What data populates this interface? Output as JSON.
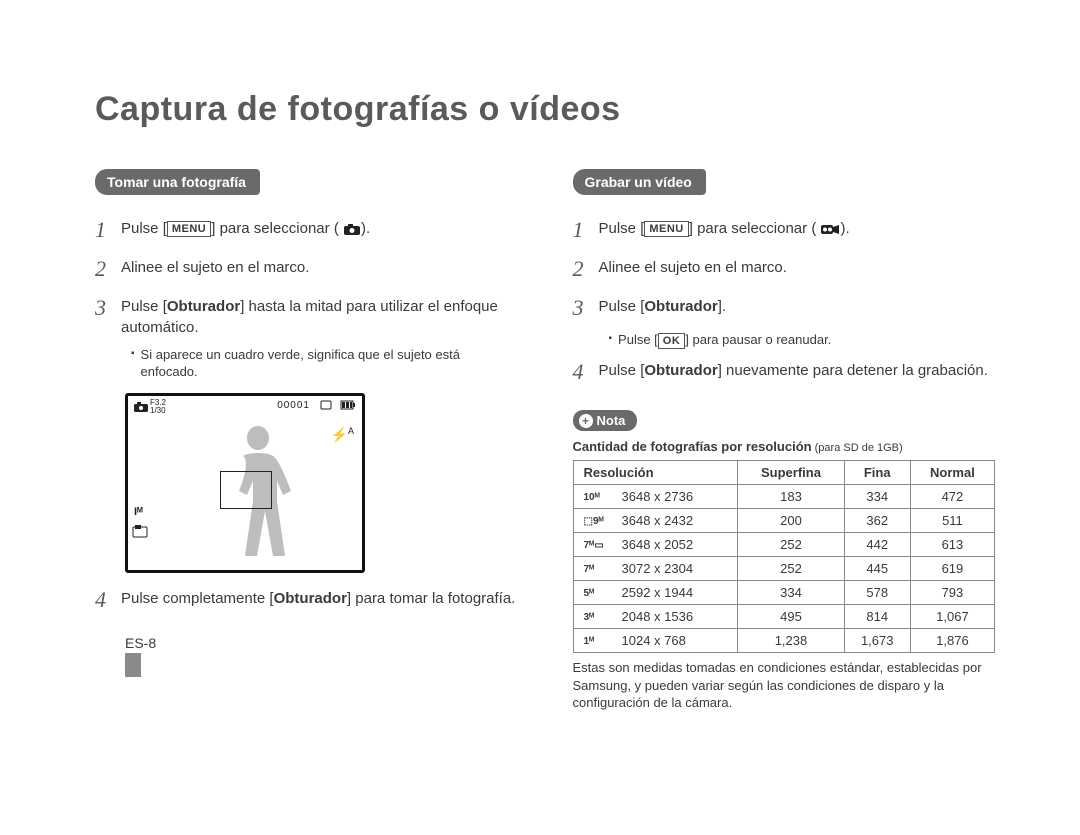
{
  "colors": {
    "text": "#3a3a3a",
    "heading": "#5a5a5a",
    "pill_bg": "#6a6a6a",
    "pill_fg": "#ffffff",
    "border": "#888888",
    "page_bar": "#8a8a8a"
  },
  "title": "Captura de fotografías o vídeos",
  "left": {
    "heading": "Tomar una fotografía",
    "steps": {
      "s1": {
        "num": "1",
        "pre": "Pulse [",
        "token": "MENU",
        "post": "] para seleccionar (",
        "icon": "camera-icon",
        "end": ")."
      },
      "s2": {
        "num": "2",
        "text": "Alinee el sujeto en el marco."
      },
      "s3": {
        "num": "3",
        "pre": "Pulse [",
        "bold": "Obturador",
        "post": "] hasta la mitad para utilizar el enfoque automático."
      },
      "s3_sub": "Si aparece un cuadro verde, significa que el sujeto está enfocado.",
      "s4": {
        "num": "4",
        "pre": "Pulse completamente [",
        "bold": "Obturador",
        "post": "] para tomar la fotografía."
      }
    },
    "viewfinder": {
      "f_number": "F3.2",
      "shutter": "1/30",
      "counter": "00001",
      "flash": "A"
    }
  },
  "right": {
    "heading": "Grabar un vídeo",
    "steps": {
      "s1": {
        "num": "1",
        "pre": "Pulse [",
        "token": "MENU",
        "post": "] para seleccionar (",
        "icon": "video-icon",
        "end": ")."
      },
      "s2": {
        "num": "2",
        "text": "Alinee el sujeto en el marco."
      },
      "s3": {
        "num": "3",
        "pre": "Pulse [",
        "bold": "Obturador",
        "post": "]."
      },
      "s3_sub_pre": "Pulse [",
      "s3_sub_token": "OK",
      "s3_sub_post": "] para pausar o reanudar.",
      "s4": {
        "num": "4",
        "pre": "Pulse [",
        "bold": "Obturador",
        "post": "] nuevamente para detener la grabación."
      }
    },
    "note_label": "Nota",
    "table_title_bold": "Cantidad de fotografías por resolución",
    "table_title_paren": " (para SD de 1GB)",
    "table": {
      "columns": [
        "Resolución",
        "Superfina",
        "Fina",
        "Normal"
      ],
      "rows": [
        {
          "icon": "10ᴹ",
          "res": "3648 x 2736",
          "sf": "183",
          "f": "334",
          "n": "472"
        },
        {
          "icon": "⬚9ᴹ",
          "res": "3648 x 2432",
          "sf": "200",
          "f": "362",
          "n": "511"
        },
        {
          "icon": "7ᴹ▭",
          "res": "3648 x 2052",
          "sf": "252",
          "f": "442",
          "n": "613"
        },
        {
          "icon": "7ᴹ",
          "res": "3072 x 2304",
          "sf": "252",
          "f": "445",
          "n": "619"
        },
        {
          "icon": "5ᴹ",
          "res": "2592 x 1944",
          "sf": "334",
          "f": "578",
          "n": "793"
        },
        {
          "icon": "3ᴹ",
          "res": "2048 x 1536",
          "sf": "495",
          "f": "814",
          "n": "1,067"
        },
        {
          "icon": "1ᴹ",
          "res": "1024 x 768",
          "sf": "1,238",
          "f": "1,673",
          "n": "1,876"
        }
      ]
    },
    "footnote": "Estas son medidas tomadas en condiciones estándar, establecidas por Samsung, y pueden variar según las condiciones de disparo y la configuración de la cámara."
  },
  "page_number": "ES-8"
}
